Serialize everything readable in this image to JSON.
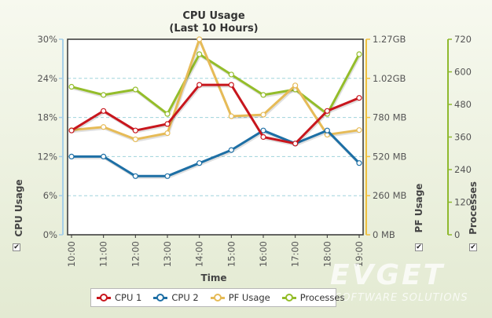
{
  "chart_data": {
    "type": "line",
    "title": "CPU Usage",
    "subtitle": "(Last 10 Hours)",
    "xlabel": "Time",
    "categories": [
      "10:00",
      "11:00",
      "12:00",
      "13:00",
      "14:00",
      "15:00",
      "16:00",
      "17:00",
      "18:00",
      "19:00"
    ],
    "axes": [
      {
        "name": "CPU Usage",
        "min": 0,
        "max": 30,
        "ticks": [
          "0%",
          "6%",
          "12%",
          "18%",
          "24%",
          "30%"
        ],
        "color": "#a6cfe8",
        "checked": true
      },
      {
        "name": "PF Usage",
        "min": 0,
        "max": 1.27,
        "unit": "GB",
        "ticks": [
          "0 MB",
          "260 MB",
          "520 MB",
          "780 MB",
          "1.02GB",
          "1.27GB"
        ],
        "color": "#f0c040",
        "checked": true
      },
      {
        "name": "Processes",
        "min": 0,
        "max": 720,
        "ticks": [
          "0",
          "120",
          "240",
          "360",
          "480",
          "600",
          "720"
        ],
        "color": "#8fb92e",
        "checked": true
      }
    ],
    "series": [
      {
        "name": "CPU 1",
        "axis": 0,
        "color": "#c8161d",
        "values": [
          16,
          19,
          16,
          17,
          23,
          23,
          15,
          14,
          19,
          21
        ]
      },
      {
        "name": "CPU 2",
        "axis": 0,
        "color": "#1d6fa5",
        "values": [
          12,
          12,
          9,
          9,
          11,
          13,
          16,
          14,
          16,
          11
        ]
      },
      {
        "name": "PF Usage",
        "axis": 1,
        "color": "#e6bb57",
        "values": [
          0.68,
          0.7,
          0.62,
          0.66,
          1.27,
          0.77,
          0.78,
          0.97,
          0.65,
          0.68
        ]
      },
      {
        "name": "Processes",
        "axis": 2,
        "color": "#94bd2a",
        "values": [
          545,
          515,
          535,
          445,
          665,
          590,
          515,
          535,
          445,
          665
        ]
      }
    ],
    "grid": true,
    "legend_position": "bottom"
  },
  "watermark": {
    "main": "EVGET",
    "sub": "SOFTWARE SOLUTIONS"
  }
}
